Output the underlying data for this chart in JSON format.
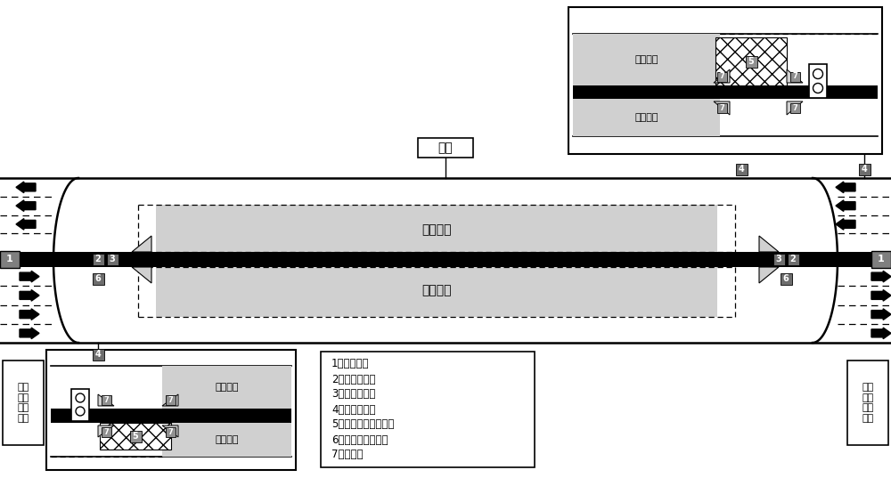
{
  "fig_width": 10.0,
  "fig_height": 5.37,
  "bg_color": "#ffffff",
  "tunnel_label": "隧道",
  "tidal_lane_label": "潮汐车道",
  "legend_items": [
    "1、提示标志",
    "2、控制信号灯",
    "3、自动栏杆机",
    "4、视频监视器",
    "5、禁停区及诱导标线",
    "6、交通事件检测器",
    "7、防火门"
  ],
  "left_label": "前方\n隧道\n潮汐\n车道",
  "right_label": "前方\n隧道\n潮汐\n车道",
  "dark_gray": "#7f7f7f",
  "black": "#000000",
  "light_gray": "#d0d0d0",
  "medium_gray": "#909090",
  "num_bg": "#6d6d6d"
}
